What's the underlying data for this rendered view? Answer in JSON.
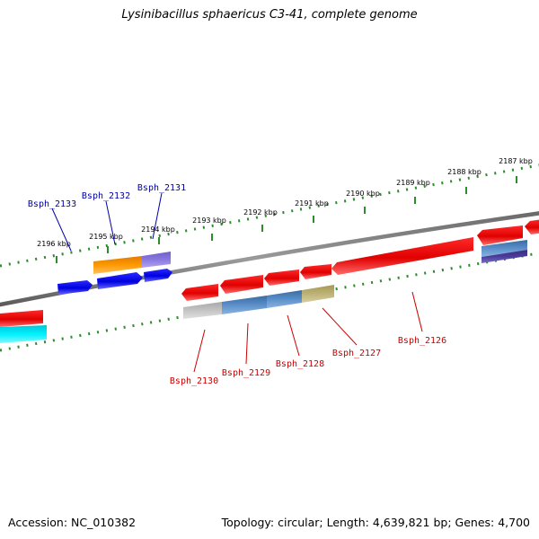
{
  "title": "Lysinibacillus sphaericus C3-41, complete genome",
  "footer": {
    "accession": "Accession: NC_010382",
    "summary": "Topology: circular; Length: 4,639,821 bp; Genes: 4,700"
  },
  "colors": {
    "backbone": "#808080",
    "scale": "#2e8b2e",
    "top_label": "#0000aa",
    "bottom_label": "#cc0000"
  },
  "scale_top": {
    "labels": [
      "2196 kbp",
      "2195 kbp",
      "2194 kbp"
    ]
  },
  "scale_bottom": {
    "labels": [
      "2193 kbp",
      "2192 kbp",
      "2191 kbp",
      "2190 kbp",
      "2189 kbp",
      "2188 kbp",
      "2187 kbp"
    ]
  },
  "genes_top": [
    {
      "name": "Bsph_2133"
    },
    {
      "name": "Bsph_2132"
    },
    {
      "name": "Bsph_2131"
    }
  ],
  "genes_bottom": [
    {
      "name": "Bsph_2130"
    },
    {
      "name": "Bsph_2129"
    },
    {
      "name": "Bsph_2128"
    },
    {
      "name": "Bsph_2127"
    },
    {
      "name": "Bsph_2126"
    }
  ]
}
